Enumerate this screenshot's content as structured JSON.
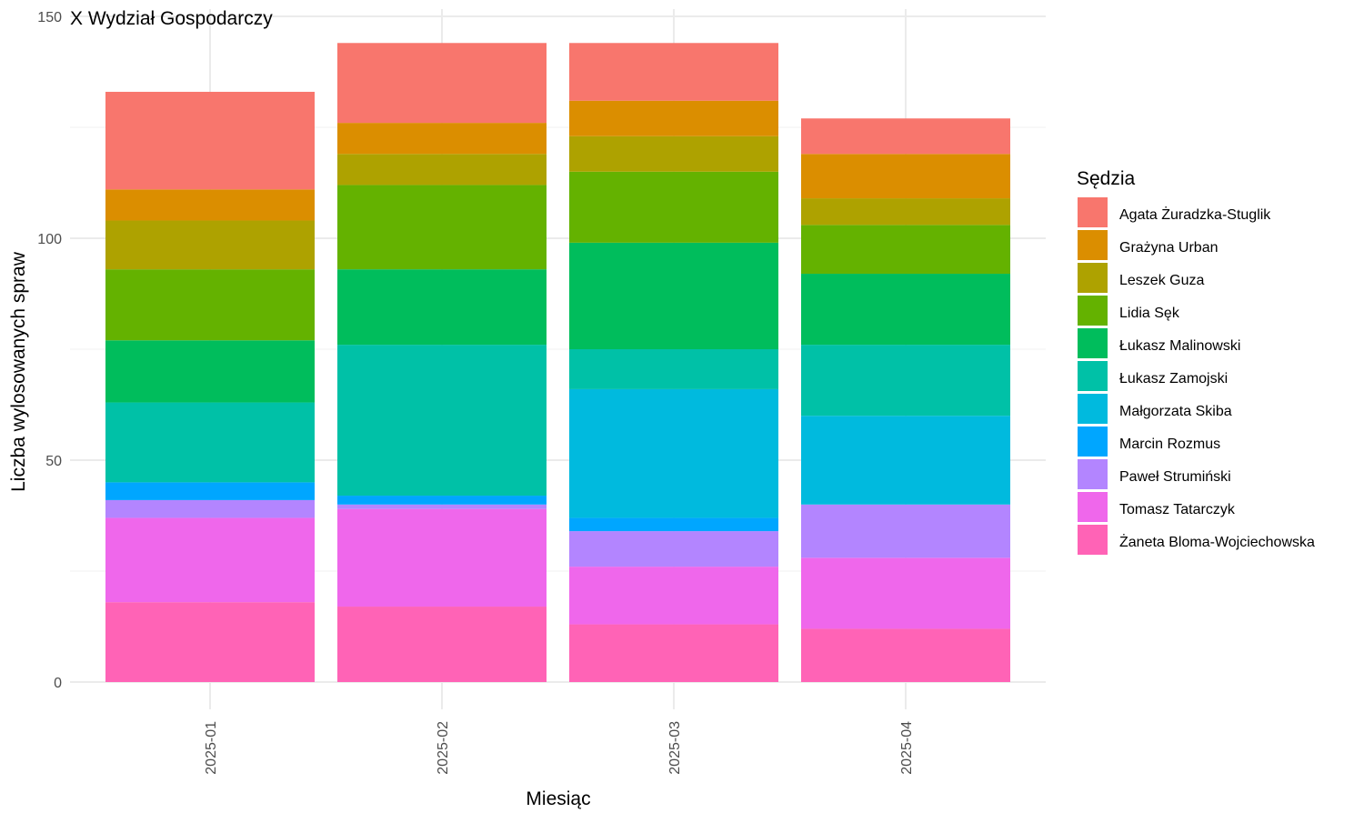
{
  "chart_data": {
    "type": "bar",
    "stacked": true,
    "title": "X Wydział Gospodarczy",
    "xlabel": "Miesiąc",
    "ylabel": "Liczba wylosowanych spraw",
    "categories": [
      "2025-01",
      "2025-02",
      "2025-03",
      "2025-04"
    ],
    "ylim": [
      0,
      150
    ],
    "yticks": [
      0,
      50,
      100,
      150
    ],
    "grid": true,
    "legend_title": "Sędzia",
    "legend_position": "right",
    "series": [
      {
        "name": "Agata Żuradzka-Stuglik",
        "color": "#F8766D",
        "values": [
          22,
          18,
          13,
          8
        ]
      },
      {
        "name": "Grażyna Urban",
        "color": "#DB8E00",
        "values": [
          7,
          7,
          8,
          10
        ]
      },
      {
        "name": "Leszek Guza",
        "color": "#AEA200",
        "values": [
          11,
          7,
          8,
          6
        ]
      },
      {
        "name": "Lidia Sęk",
        "color": "#64B200",
        "values": [
          16,
          19,
          16,
          11
        ]
      },
      {
        "name": "Łukasz Malinowski",
        "color": "#00BD5C",
        "values": [
          14,
          17,
          24,
          16
        ]
      },
      {
        "name": "Łukasz Zamojski",
        "color": "#00C1A7",
        "values": [
          18,
          34,
          9,
          16
        ]
      },
      {
        "name": "Małgorzata Skiba",
        "color": "#00BADE",
        "values": [
          0,
          0,
          29,
          20
        ]
      },
      {
        "name": "Marcin Rozmus",
        "color": "#00A6FF",
        "values": [
          4,
          2,
          3,
          0
        ]
      },
      {
        "name": "Paweł Strumiński",
        "color": "#B385FF",
        "values": [
          4,
          1,
          8,
          12
        ]
      },
      {
        "name": "Tomasz Tatarczyk",
        "color": "#EF67EB",
        "values": [
          19,
          22,
          13,
          16
        ]
      },
      {
        "name": "Żaneta Bloma-Wojciechowska",
        "color": "#FF63B6",
        "values": [
          18,
          17,
          13,
          12
        ]
      }
    ]
  }
}
